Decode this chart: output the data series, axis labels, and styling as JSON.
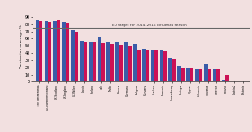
{
  "title": "EU target for 2014–2015 influenza season",
  "ylabel": "Vaccination coverage, %",
  "eu_target": 75,
  "ylim": [
    0,
    99
  ],
  "yticks": [
    0,
    10,
    20,
    30,
    40,
    50,
    60,
    70,
    80,
    90
  ],
  "background_color": "#f2e0e0",
  "bar_color_2011": "#3a5ca8",
  "bar_color_2012": "#cc1155",
  "categories": [
    "The Netherlands",
    "UK-Northern Ireland",
    "UK-Scotland",
    "UK-England",
    "UK-Wales",
    "Latvia",
    "Ireland",
    "Italy",
    "Malta",
    "France",
    "Germany",
    "Belgium",
    "Hungary",
    "Iceland",
    "Romania",
    "Luxembourg",
    "Portugal",
    "Cyprus",
    "Lithuania",
    "Slovenia",
    "Greece",
    "Poland",
    "Latvia2",
    "Estonia"
  ],
  "values_2011": [
    87,
    84,
    84,
    83,
    72,
    57,
    56,
    63,
    55,
    55,
    55,
    52,
    46,
    45,
    45,
    33,
    22,
    20,
    18,
    25,
    18,
    3,
    2,
    1
  ],
  "values_2012": [
    84,
    83,
    87,
    82,
    70,
    56,
    56,
    54,
    52,
    51,
    50,
    45,
    45,
    45,
    44,
    32,
    20,
    19,
    17,
    17,
    17,
    9,
    1,
    1
  ]
}
